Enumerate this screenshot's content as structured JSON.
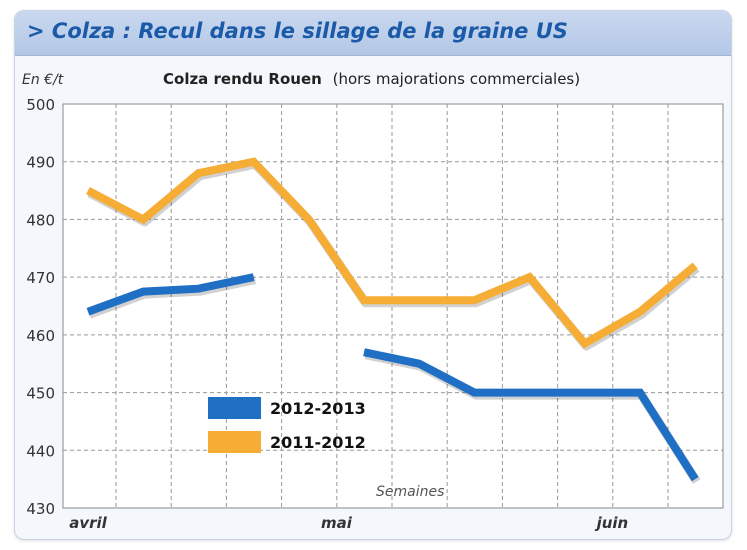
{
  "header": {
    "title": "> Colza : Recul dans le sillage de la graine US"
  },
  "chart_data": {
    "type": "line",
    "title_bold": "Colza rendu Rouen",
    "title_note": "(hors majorations commerciales)",
    "ylabel": "En €/t",
    "xlabel": "Semaines",
    "ylim": [
      430,
      500
    ],
    "yticks": [
      430,
      440,
      450,
      460,
      470,
      480,
      490,
      500
    ],
    "x_month_labels": [
      {
        "label": "avril",
        "week": 0
      },
      {
        "label": "mai",
        "week": 4.5
      },
      {
        "label": "juin",
        "week": 9.5
      }
    ],
    "weeks": [
      0,
      1,
      2,
      3,
      4,
      5,
      6,
      7,
      8,
      9,
      10,
      11
    ],
    "grid": true,
    "legend_position": "bottom-left",
    "series": [
      {
        "name": "2012-2013",
        "color": "#1f6fc4",
        "values": [
          464,
          467.5,
          468,
          470,
          null,
          457,
          455,
          450,
          450,
          450,
          450,
          435
        ]
      },
      {
        "name": "2011-2012",
        "color": "#f5ad35",
        "values": [
          485,
          480,
          488,
          490,
          480,
          466,
          466,
          466,
          470,
          458.5,
          464,
          472
        ]
      }
    ]
  }
}
